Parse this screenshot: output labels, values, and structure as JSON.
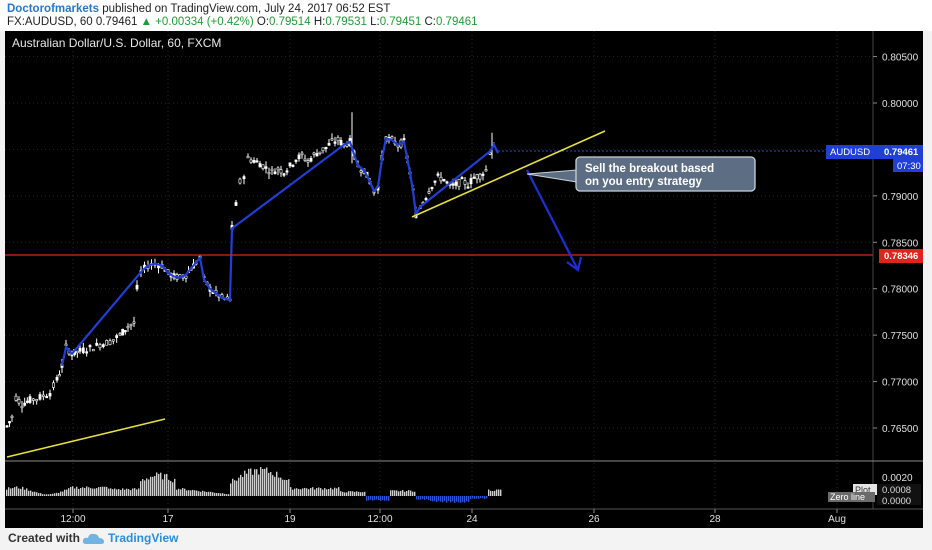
{
  "header": {
    "author": "Doctorofmarkets",
    "published": "published on TradingView.com, July 24, 2017 06:52 EST",
    "symbol": "FX:AUDUSD, 60",
    "last": "0.79461",
    "change_arrow": "▲",
    "change": "+0.00334 (+0.42%)",
    "o_label": "O:",
    "o": "0.79514",
    "h_label": "H:",
    "h": "0.79531",
    "l_label": "L:",
    "l": "0.79451",
    "c_label": "C:",
    "c": "0.79461"
  },
  "footer": {
    "created_with": "Created with",
    "brand": "TradingView"
  },
  "chart_data": {
    "type": "candlestick",
    "title": "Australian Dollar/U.S. Dollar, 60, FXCM",
    "y_ticks": [
      "0.80500",
      "0.80000",
      "0.79500",
      "0.79000",
      "0.78500",
      "0.78000",
      "0.77500",
      "0.77000",
      "0.76500"
    ],
    "ylim": [
      0.7635,
      0.8065
    ],
    "x_ticks": [
      "12:00",
      "17",
      "19",
      "12:00",
      "24",
      "26",
      "28",
      "Aug"
    ],
    "price_label": "AUDUSD",
    "price_value": "0.79461",
    "price_countdown": "07:30",
    "level_label": "0.78346",
    "level_value": 0.78346,
    "annotation": "Sell the breakout based on you entry strategy",
    "indicator": {
      "y_ticks": [
        "0.0020",
        "0.0000"
      ],
      "plot_label": "Plot",
      "plot_value": "0.0008",
      "zero_label": "Zero line",
      "zero_value": "0.0000"
    },
    "colors": {
      "background": "#000000",
      "candle": "#ffffff",
      "line": "#1f3fd6",
      "level": "#e0241b",
      "trend": "#e7e03a",
      "arrow": "#1c2fd6",
      "hist_pos": "#cfcfcf",
      "hist_neg": "#2a52d8"
    }
  }
}
